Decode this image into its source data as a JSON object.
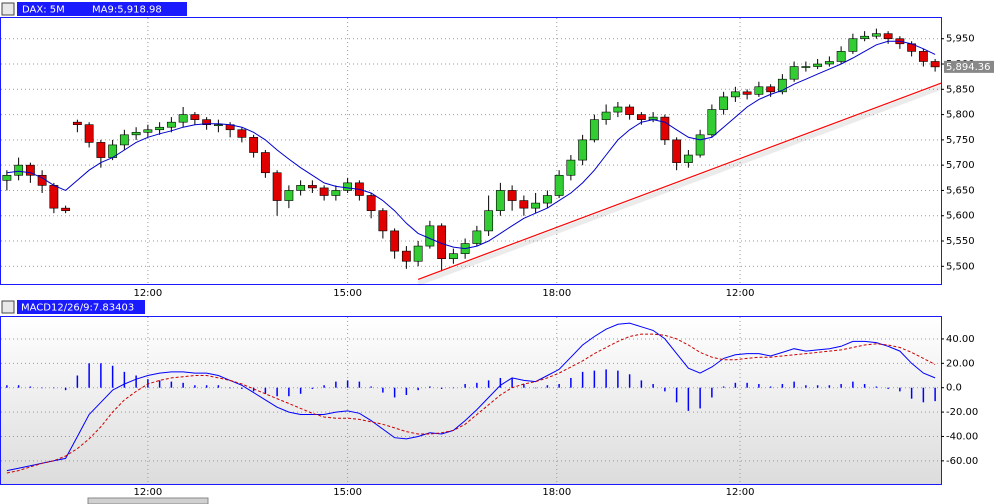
{
  "chart_data": [
    {
      "type": "candlestick",
      "title": "DAX: 5M",
      "ma_label": "MA9:5,918.98",
      "up_color": "#32cd32",
      "down_color": "#e00000",
      "xlim": [
        0,
        80
      ],
      "xticks": [
        {
          "value": 12.5,
          "label": "12:00"
        },
        {
          "value": 29.5,
          "label": "15:00"
        },
        {
          "value": 47.3,
          "label": "18:00"
        },
        {
          "value": 62.9,
          "label": "12:00"
        }
      ],
      "ylim": [
        5465,
        5991
      ],
      "yticks": [
        {
          "value": 5500,
          "label": "5,500"
        },
        {
          "value": 5550,
          "label": "5,550"
        },
        {
          "value": 5600,
          "label": "5,600"
        },
        {
          "value": 5650,
          "label": "5,650"
        },
        {
          "value": 5700,
          "label": "5,700"
        },
        {
          "value": 5750,
          "label": "5,750"
        },
        {
          "value": 5800,
          "label": "5,800"
        },
        {
          "value": 5850,
          "label": "5,850"
        },
        {
          "value": 5900,
          "label": "5,900"
        },
        {
          "value": 5950,
          "label": "5,950"
        }
      ],
      "grid": true,
      "open": [
        5670,
        5680,
        5700,
        5680,
        5660,
        5615,
        5785,
        5780,
        5745,
        5715,
        5740,
        5760,
        5765,
        5770,
        5775,
        5785,
        5800,
        5790,
        5780,
        5780,
        5770,
        5755,
        5725,
        5685,
        5630,
        5650,
        5660,
        5655,
        5640,
        5650,
        5665,
        5640,
        5610,
        5570,
        5530,
        5510,
        5540,
        5580,
        5515,
        5525,
        5545,
        5570,
        5610,
        5650,
        5630,
        5615,
        5625,
        5640,
        5680,
        5710,
        5750,
        5790,
        5805,
        5815,
        5800,
        5790,
        5795,
        5750,
        5705,
        5720,
        5760,
        5810,
        5835,
        5845,
        5840,
        5855,
        5845,
        5870,
        5895,
        5895,
        5900,
        5905,
        5925,
        5950,
        5955,
        5960,
        5950,
        5940,
        5925,
        5905
      ],
      "high": [
        5690,
        5715,
        5705,
        5690,
        5665,
        5620,
        5790,
        5785,
        5750,
        5750,
        5770,
        5775,
        5780,
        5785,
        5795,
        5815,
        5805,
        5795,
        5790,
        5785,
        5775,
        5760,
        5730,
        5690,
        5660,
        5670,
        5670,
        5660,
        5660,
        5675,
        5670,
        5645,
        5615,
        5575,
        5540,
        5550,
        5590,
        5585,
        5535,
        5555,
        5580,
        5640,
        5665,
        5660,
        5640,
        5645,
        5650,
        5690,
        5720,
        5760,
        5800,
        5820,
        5825,
        5820,
        5805,
        5805,
        5800,
        5755,
        5730,
        5770,
        5820,
        5845,
        5855,
        5850,
        5865,
        5860,
        5880,
        5905,
        5905,
        5910,
        5915,
        5935,
        5960,
        5965,
        5970,
        5965,
        5955,
        5945,
        5930,
        5910
      ],
      "low": [
        5650,
        5670,
        5665,
        5645,
        5605,
        5605,
        5765,
        5735,
        5695,
        5710,
        5730,
        5750,
        5755,
        5760,
        5765,
        5775,
        5780,
        5770,
        5765,
        5755,
        5745,
        5715,
        5675,
        5600,
        5615,
        5640,
        5645,
        5630,
        5630,
        5645,
        5630,
        5595,
        5555,
        5515,
        5495,
        5500,
        5535,
        5490,
        5505,
        5515,
        5540,
        5560,
        5600,
        5610,
        5600,
        5605,
        5615,
        5635,
        5670,
        5700,
        5745,
        5780,
        5795,
        5790,
        5780,
        5785,
        5740,
        5690,
        5695,
        5715,
        5755,
        5800,
        5825,
        5830,
        5835,
        5835,
        5840,
        5865,
        5885,
        5890,
        5895,
        5900,
        5920,
        5945,
        5950,
        5940,
        5930,
        5915,
        5895,
        5885
      ],
      "close": [
        5680,
        5700,
        5680,
        5660,
        5615,
        5610,
        5780,
        5745,
        5715,
        5740,
        5760,
        5765,
        5770,
        5775,
        5785,
        5800,
        5790,
        5780,
        5780,
        5770,
        5755,
        5725,
        5685,
        5630,
        5650,
        5660,
        5655,
        5640,
        5650,
        5665,
        5640,
        5610,
        5570,
        5530,
        5510,
        5540,
        5580,
        5515,
        5525,
        5545,
        5570,
        5610,
        5650,
        5630,
        5615,
        5625,
        5640,
        5680,
        5710,
        5750,
        5790,
        5805,
        5815,
        5800,
        5790,
        5795,
        5750,
        5705,
        5720,
        5760,
        5810,
        5835,
        5845,
        5840,
        5855,
        5845,
        5870,
        5895,
        5895,
        5900,
        5905,
        5925,
        5950,
        5955,
        5960,
        5950,
        5940,
        5925,
        5905,
        5894.36
      ],
      "ma": {
        "color": "#0000cc",
        "values": [
          5685,
          5688,
          5685,
          5675,
          5660,
          5650,
          5670,
          5690,
          5705,
          5715,
          5730,
          5745,
          5755,
          5762,
          5768,
          5775,
          5780,
          5782,
          5782,
          5780,
          5775,
          5765,
          5750,
          5730,
          5712,
          5695,
          5680,
          5665,
          5658,
          5655,
          5652,
          5645,
          5630,
          5610,
          5585,
          5565,
          5555,
          5545,
          5538,
          5535,
          5540,
          5550,
          5565,
          5580,
          5595,
          5605,
          5615,
          5630,
          5645,
          5665,
          5690,
          5720,
          5750,
          5770,
          5785,
          5790,
          5785,
          5770,
          5755,
          5750,
          5755,
          5775,
          5795,
          5815,
          5830,
          5840,
          5848,
          5860,
          5870,
          5880,
          5890,
          5900,
          5912,
          5925,
          5938,
          5945,
          5945,
          5940,
          5930,
          5918.98
        ]
      },
      "trendline": {
        "color": "#ff0000",
        "x": [
          35.5,
          80
        ],
        "y": [
          5474,
          5862
        ]
      },
      "current_price": {
        "value": 5894.36,
        "label": "5,894.36"
      }
    },
    {
      "type": "macd",
      "title": "MACD12/26/9:7.83403",
      "xlim": [
        0,
        80
      ],
      "xticks": [
        {
          "value": 12.5,
          "label": "12:00"
        },
        {
          "value": 29.5,
          "label": "15:00"
        },
        {
          "value": 47.3,
          "label": "18:00"
        },
        {
          "value": 62.9,
          "label": "12:00"
        }
      ],
      "ylim": [
        -79,
        58
      ],
      "yticks": [
        {
          "value": -60,
          "label": "-60.00"
        },
        {
          "value": -40,
          "label": "-40.00"
        },
        {
          "value": -20,
          "label": "-20.00"
        },
        {
          "value": 0,
          "label": "0.0"
        },
        {
          "value": 20,
          "label": "20.00"
        },
        {
          "value": 40,
          "label": "40.00"
        }
      ],
      "grid": true,
      "series": [
        {
          "style": "bar",
          "color": "#0000ff",
          "values": [
            2,
            2,
            1,
            0,
            0,
            -2,
            10,
            20,
            20,
            18,
            13,
            10,
            7,
            6,
            5,
            4,
            2,
            2,
            2,
            0,
            -1,
            -3,
            -5,
            -7,
            -7,
            -5,
            -1,
            2,
            5,
            6,
            5,
            1,
            -4,
            -8,
            -6,
            -2,
            1,
            -1,
            0,
            3,
            4,
            6,
            8,
            8,
            3,
            0,
            2,
            3,
            8,
            13,
            14,
            15,
            14,
            11,
            6,
            3,
            -3,
            -12,
            -19,
            -17,
            -8,
            1,
            4,
            4,
            3,
            1,
            3,
            5,
            2,
            2,
            2,
            3,
            5,
            3,
            1,
            -1,
            -3,
            -9,
            -12,
            -11
          ]
        },
        {
          "style": "line",
          "color": "#0000ff",
          "values": [
            -68,
            -66,
            -64,
            -62,
            -60,
            -58,
            -40,
            -22,
            -12,
            -2,
            3,
            7,
            10,
            12,
            13,
            13,
            12,
            12,
            10,
            6,
            2,
            -4,
            -10,
            -16,
            -20,
            -22,
            -22,
            -22,
            -20,
            -19,
            -21,
            -27,
            -34,
            -41,
            -42,
            -40,
            -37,
            -38,
            -35,
            -27,
            -18,
            -8,
            2,
            8,
            6,
            5,
            10,
            15,
            25,
            35,
            42,
            48,
            52,
            53,
            50,
            47,
            40,
            28,
            16,
            12,
            17,
            24,
            27,
            28,
            28,
            26,
            29,
            32,
            30,
            31,
            32,
            34,
            38,
            38,
            37,
            34,
            30,
            20,
            12,
            8
          ]
        },
        {
          "style": "dashed",
          "color": "#cc0000",
          "values": [
            -70,
            -68,
            -65,
            -62,
            -60,
            -56,
            -50,
            -42,
            -32,
            -20,
            -10,
            -3,
            3,
            6,
            8,
            9,
            10,
            10,
            8,
            6,
            3,
            -1,
            -5,
            -9,
            -13,
            -17,
            -21,
            -24,
            -25,
            -25,
            -26,
            -28,
            -30,
            -33,
            -36,
            -38,
            -38,
            -37,
            -35,
            -30,
            -22,
            -14,
            -6,
            0,
            3,
            5,
            8,
            12,
            17,
            22,
            28,
            33,
            38,
            42,
            44,
            44,
            43,
            40,
            35,
            29,
            25,
            23,
            23,
            24,
            25,
            25,
            26,
            27,
            28,
            29,
            30,
            31,
            33,
            35,
            36,
            35,
            33,
            29,
            24,
            19
          ]
        }
      ]
    }
  ]
}
